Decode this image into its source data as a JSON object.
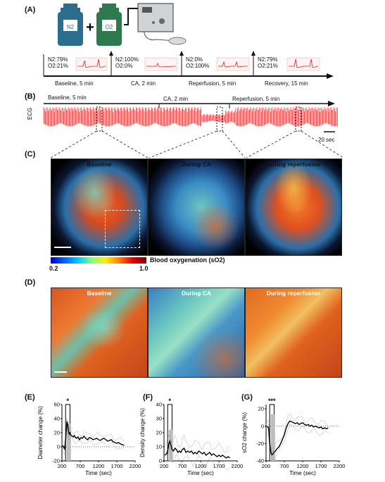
{
  "panel_labels": {
    "a": "(A)",
    "b": "(B)",
    "c": "(C)",
    "d": "(D)",
    "e": "(E)",
    "f": "(F)",
    "g": "(G)"
  },
  "panel_a": {
    "bottle_n2": "N2",
    "bottle_o2": "O2",
    "plus": "+",
    "gas_conditions": [
      {
        "line1": "N2:79%",
        "line2": "O2:21%"
      },
      {
        "line1": "N2:100%",
        "line2": "O2:0%"
      },
      {
        "line1": "N2:0%",
        "line2": "O2:100%"
      },
      {
        "line1": "N2:79%",
        "line2": "O2:21%"
      }
    ],
    "phases": [
      "Baseline, 5 min",
      "CA, 2 min",
      "Reperfusion, 5 min",
      "Recovery, 15 min"
    ]
  },
  "panel_b": {
    "y_label": "ECG",
    "baseline_label": "Baseline, 5 min",
    "ca_label": "CA, 2 min",
    "reperfusion_label": "Reperfusion, 5 min",
    "scale_label": "20 sec"
  },
  "panel_c": {
    "titles": [
      "Baseline",
      "During CA",
      "During reperfusion"
    ],
    "colorbar_label": "Blood oxygenation (sO2)",
    "colorbar_min": "0.2",
    "colorbar_max": "1.0"
  },
  "panel_d": {
    "titles": [
      "Baseline",
      "During CA",
      "During reperfusion"
    ]
  },
  "colors": {
    "ecg": "#ff1a1a",
    "line": "#000000",
    "bar": "#bdbdbd"
  },
  "chart_data": [
    {
      "type": "line",
      "ylabel": "Diameter change (%)",
      "xlabel": "Time (sec)",
      "xticks": [
        "200",
        "700",
        "1200",
        "1700",
        "2200"
      ],
      "yticks": [
        "-20",
        "0",
        "20",
        "40",
        "60"
      ],
      "xlim": [
        200,
        2200
      ],
      "ylim": [
        -20,
        60
      ],
      "significance": "*",
      "x": [
        220,
        270,
        300,
        320,
        340,
        360,
        380,
        400,
        420,
        450,
        480,
        510,
        540,
        570,
        600,
        640,
        680,
        720,
        760,
        800,
        850,
        900,
        950,
        1000,
        1050,
        1100,
        1150,
        1200,
        1250,
        1300,
        1350,
        1400,
        1450,
        1500,
        1550,
        1600,
        1650,
        1700,
        1750,
        1800,
        1850,
        1900
      ],
      "y": [
        2,
        -3,
        8,
        25,
        36,
        30,
        22,
        18,
        20,
        16,
        15,
        14,
        16,
        13,
        12,
        14,
        10,
        13,
        12,
        15,
        12,
        10,
        13,
        12,
        10,
        11,
        12,
        10,
        9,
        11,
        12,
        10,
        8,
        9,
        10,
        7,
        6,
        5,
        6,
        4,
        3,
        2
      ]
    },
    {
      "type": "line",
      "ylabel": "Density change (%)",
      "xlabel": "Time (sec)",
      "xticks": [
        "200",
        "700",
        "1200",
        "1700",
        "2200"
      ],
      "yticks": [
        "0",
        "10",
        "20",
        "30",
        "40"
      ],
      "xlim": [
        200,
        2200
      ],
      "ylim": [
        0,
        40
      ],
      "significance": "*",
      "x": [
        220,
        270,
        300,
        330,
        360,
        390,
        420,
        460,
        500,
        540,
        580,
        620,
        660,
        700,
        750,
        800,
        850,
        900,
        950,
        1000,
        1050,
        1100,
        1150,
        1200,
        1250,
        1300,
        1350,
        1400,
        1450,
        1500,
        1550,
        1600,
        1650,
        1700,
        1750,
        1800,
        1850,
        1900,
        1950,
        2000
      ],
      "y": [
        4,
        5,
        7,
        12,
        14,
        11,
        8,
        7,
        9,
        8,
        6,
        7,
        6,
        8,
        9,
        6,
        7,
        6,
        7,
        5,
        6,
        5,
        7,
        6,
        5,
        6,
        4,
        5,
        6,
        4,
        5,
        4,
        3,
        4,
        3,
        4,
        3,
        2,
        3,
        2
      ]
    },
    {
      "type": "line",
      "ylabel": "sO2 change (%)",
      "xlabel": "Time (sec)",
      "xticks": [
        "200",
        "700",
        "1200",
        "1700",
        "2200"
      ],
      "yticks": [
        "-40",
        "-20",
        "0",
        "20"
      ],
      "xlim": [
        200,
        2200
      ],
      "ylim": [
        -40,
        25
      ],
      "significance": "***",
      "x": [
        220,
        270,
        300,
        330,
        360,
        390,
        420,
        450,
        500,
        550,
        600,
        650,
        700,
        750,
        800,
        850,
        900,
        950,
        1000,
        1050,
        1100,
        1150,
        1200,
        1250,
        1300,
        1350,
        1400,
        1450,
        1500,
        1550,
        1600,
        1650,
        1700,
        1750,
        1800,
        1850,
        1900
      ],
      "y": [
        0,
        -2,
        -20,
        -30,
        -33,
        -32,
        -30,
        -29,
        -26,
        -24,
        -20,
        -15,
        -10,
        -2,
        3,
        6,
        5,
        4,
        3,
        4,
        2,
        3,
        4,
        2,
        1,
        2,
        0,
        1,
        -1,
        0,
        -1,
        -2,
        -1,
        -3,
        -2,
        -3,
        -2
      ]
    }
  ]
}
